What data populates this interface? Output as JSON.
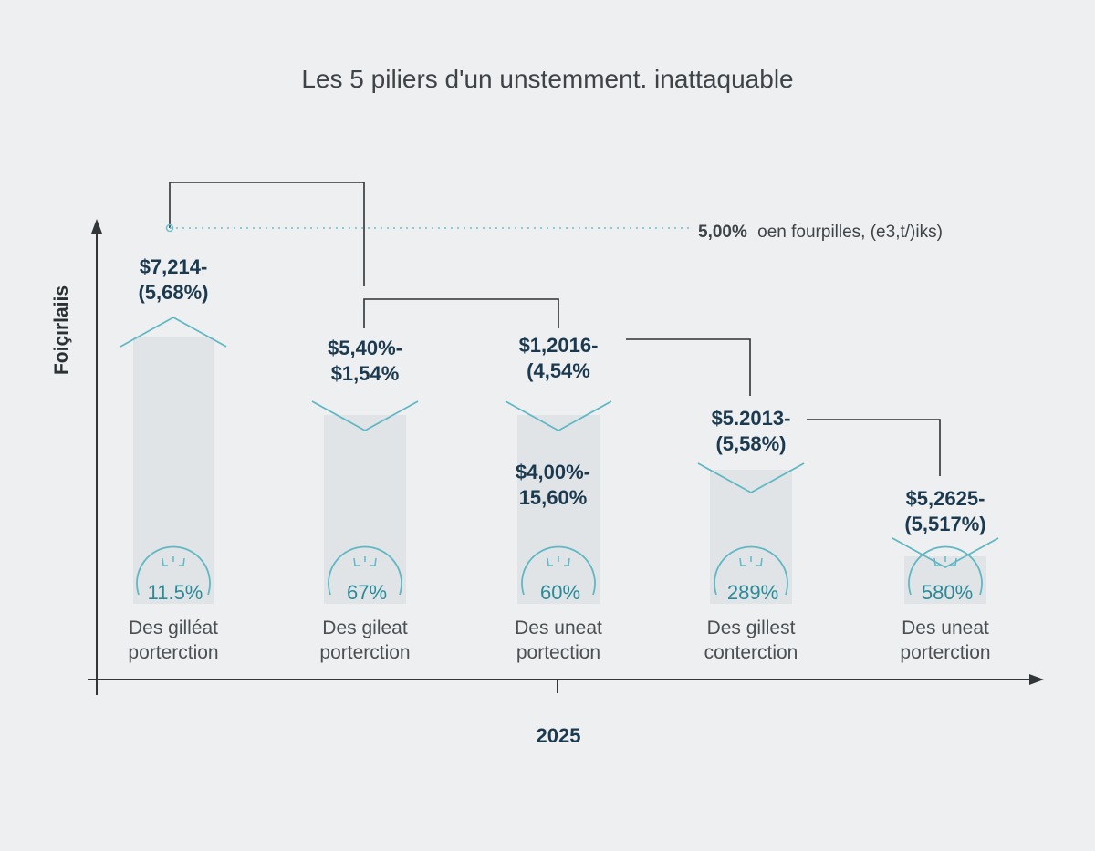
{
  "chart_data": {
    "type": "bar",
    "title": "Les 5 piliers d'un unstemment. inattaquable",
    "ylabel": "Foiçırlaiis",
    "xlabel": "",
    "x_tick": "2025",
    "reference_line": {
      "value_label": "5,00%",
      "text": "oen fourpilles, (e3,t/)iks)"
    },
    "categories": [
      [
        "Des gilléat",
        "porterction"
      ],
      [
        "Des gileat",
        "porterction"
      ],
      [
        "Des uneat",
        "portection"
      ],
      [
        "Des gillest",
        "conterction"
      ],
      [
        "Des uneat",
        "porterction"
      ]
    ],
    "series": [
      {
        "values": [
          11.5,
          67,
          60,
          289,
          580
        ],
        "labels": [
          "11.5%",
          "67%",
          "60%",
          "289%",
          "580%"
        ]
      }
    ],
    "annotations": [
      [
        "$7,214-",
        "(5,68%)"
      ],
      [
        "$5,40%-",
        "$1,54%"
      ],
      [
        "$1,2016-",
        "(4,54%"
      ],
      [
        "$5.2013-",
        "(5,58%)"
      ],
      [
        "$5,2625-",
        "(5,517%)"
      ]
    ],
    "extra_annotation": [
      "$4,00%-",
      "15,60%"
    ],
    "colors": {
      "bar": "#e1e4e7",
      "accent": "#5fb8c4",
      "value_text": "#1b3a4f",
      "pct_text": "#2a8a98",
      "axis": "#333638"
    }
  }
}
